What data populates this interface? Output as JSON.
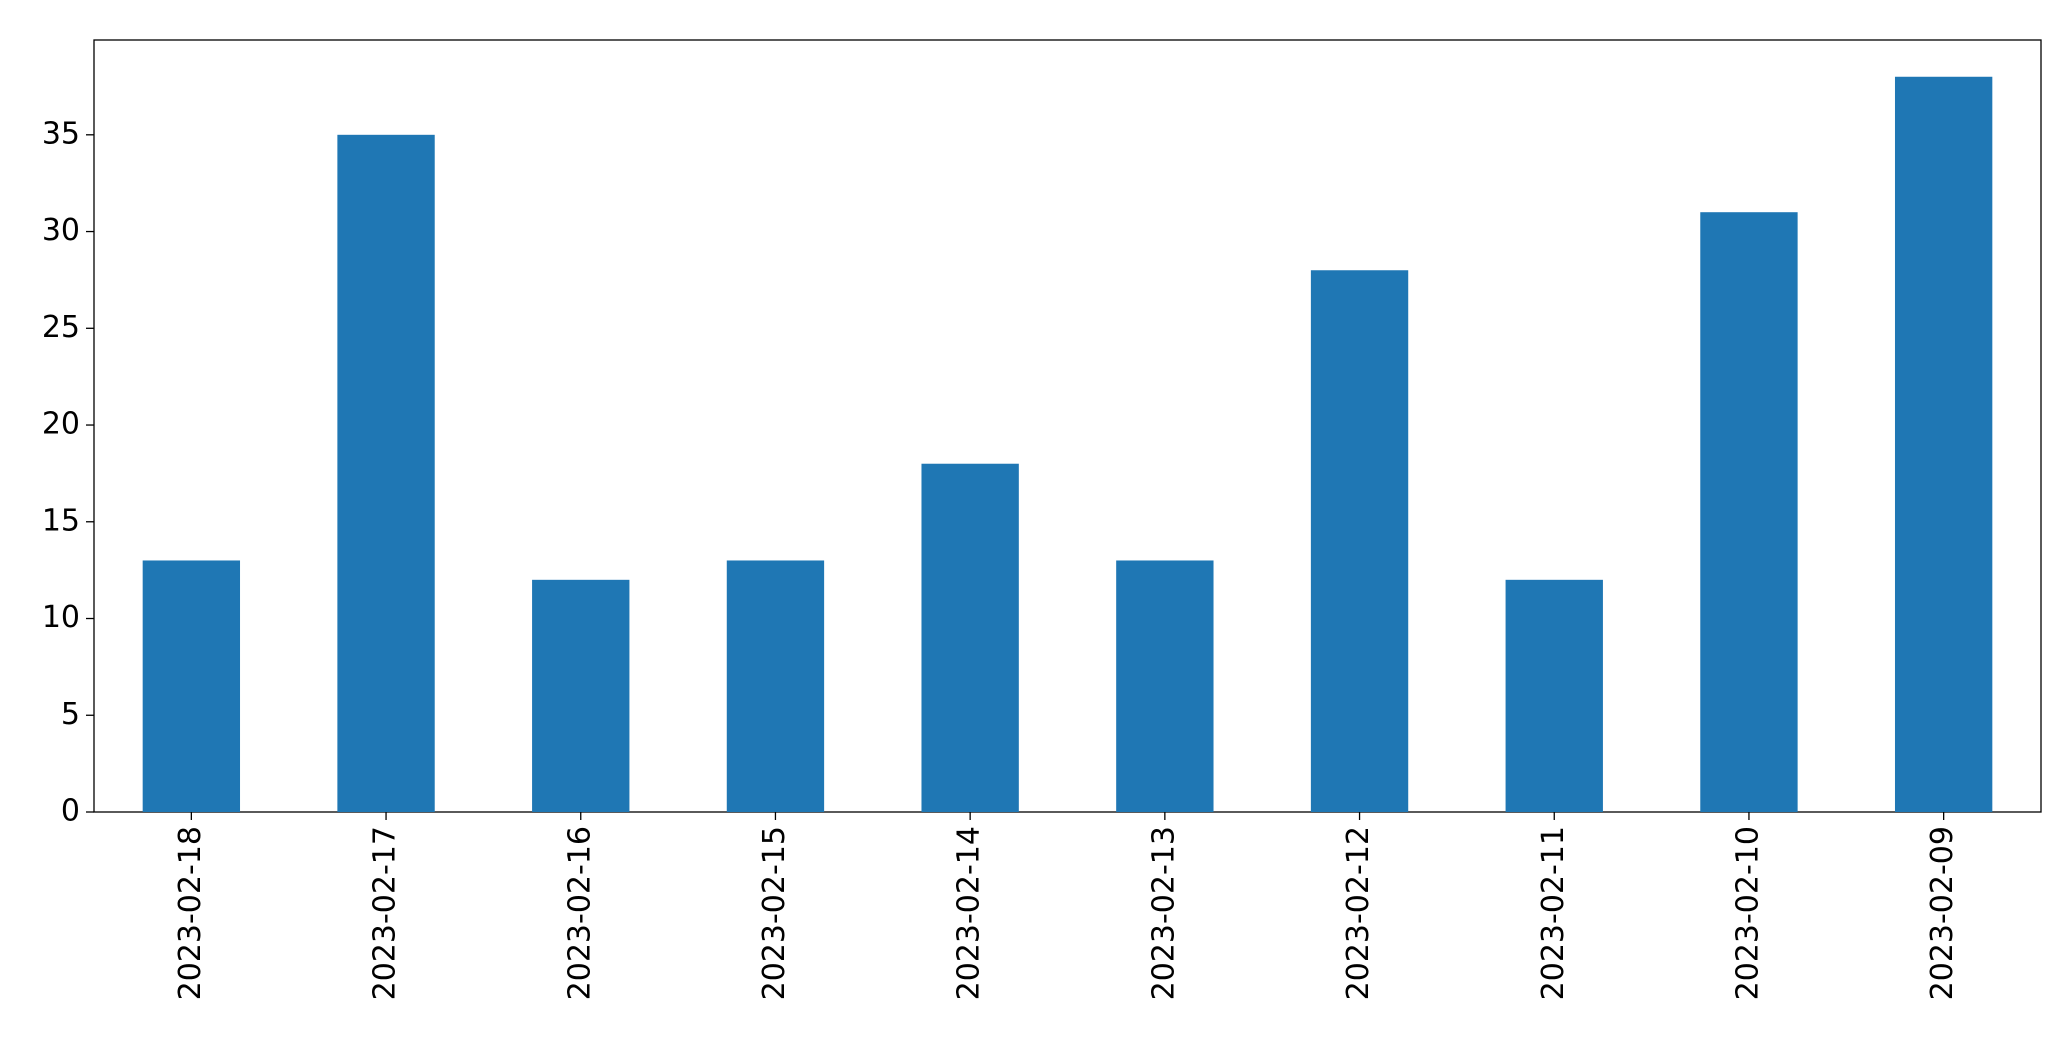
{
  "chart_data": {
    "type": "bar",
    "categories": [
      "2023-02-18",
      "2023-02-17",
      "2023-02-16",
      "2023-02-15",
      "2023-02-14",
      "2023-02-13",
      "2023-02-12",
      "2023-02-11",
      "2023-02-10",
      "2023-02-09"
    ],
    "values": [
      13,
      35,
      12,
      13,
      18,
      13,
      28,
      12,
      31,
      38
    ],
    "color": "#1f77b4",
    "ylim": [
      0,
      39.9
    ],
    "yticks": [
      0,
      5,
      10,
      15,
      20,
      25,
      30,
      35
    ],
    "grid": false
  }
}
